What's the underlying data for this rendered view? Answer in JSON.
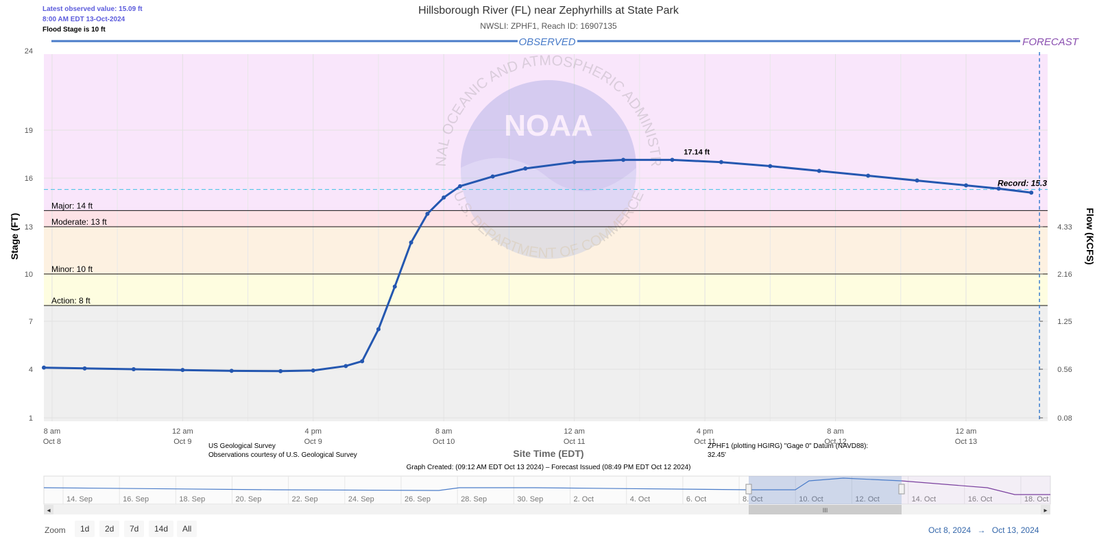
{
  "status": {
    "latest_observed": "Latest observed value: 15.09 ft",
    "observed_time": "8:00 AM EDT 13-Oct-2024",
    "flood_stage": "Flood Stage is 10 ft"
  },
  "header": {
    "title": "Hillsborough River (FL) near Zephyrhills at State Park",
    "subtitle": "NWSLI: ZPHF1, Reach ID: 16907135"
  },
  "colors": {
    "observed": "#4a7cc9",
    "forecast": "#8a4fb0",
    "series": "#2457b0",
    "major_zone": "#f9e6fb",
    "moderate_zone": "#fde2e6",
    "minor_zone": "#fdf1e1",
    "action_zone": "#fefde0",
    "normal_zone": "#efefef",
    "record_line": "#55c6e8"
  },
  "credits": {
    "source_line1": "US Geological Survey",
    "source_line2": "Observations courtesy of U.S. Geological Survey",
    "datum": "ZPHF1 (plotting HGIRG) \"Gage 0\" Datum (NAVD88): 32.45'",
    "graph_created": "Graph Created: (09:12 AM EDT Oct 13 2024) – Forecast Issued (08:49 PM EDT Oct 12 2024)"
  },
  "watermark_text": [
    "NATIONAL OCEANIC AND ATMOSPHERIC ADMINISTRATION",
    "U.S. DEPARTMENT OF COMMERCE",
    "NOAA"
  ],
  "chart_data": {
    "type": "line",
    "title": "Hillsborough River (FL) near Zephyrhills at State Park",
    "subtitle": "NWSLI: ZPHF1, Reach ID: 16907135",
    "xlabel": "Site Time (EDT)",
    "ylabel": "Stage (FT)",
    "y2label": "Flow (KCFS)",
    "ylim": [
      1,
      24
    ],
    "x_range": [
      "2024-10-08 07:00",
      "2024-10-13 10:00"
    ],
    "y_ticks": [
      1,
      4,
      7,
      10,
      13,
      16,
      19,
      24
    ],
    "y2_ticks": [
      {
        "stage": 1,
        "label": "0.08"
      },
      {
        "stage": 4,
        "label": "0.56"
      },
      {
        "stage": 7,
        "label": "1.25"
      },
      {
        "stage": 10,
        "label": "2.16"
      },
      {
        "stage": 13,
        "label": "4.33"
      }
    ],
    "x_ticks": [
      {
        "t": "2024-10-08 08:00",
        "line1": "8 am",
        "line2": "Oct 8"
      },
      {
        "t": "2024-10-09 00:00",
        "line1": "12 am",
        "line2": "Oct 9"
      },
      {
        "t": "2024-10-09 16:00",
        "line1": "4 pm",
        "line2": "Oct 9"
      },
      {
        "t": "2024-10-10 08:00",
        "line1": "8 am",
        "line2": "Oct 10"
      },
      {
        "t": "2024-10-11 00:00",
        "line1": "12 am",
        "line2": "Oct 11"
      },
      {
        "t": "2024-10-11 16:00",
        "line1": "4 pm",
        "line2": "Oct 11"
      },
      {
        "t": "2024-10-12 08:00",
        "line1": "8 am",
        "line2": "Oct 12"
      },
      {
        "t": "2024-10-13 00:00",
        "line1": "12 am",
        "line2": "Oct 13"
      }
    ],
    "observed_label": "OBSERVED",
    "forecast_label": "FORECAST",
    "forecast_start": "2024-10-13 09:00",
    "thresholds": [
      {
        "name": "Major",
        "value": 14,
        "label": "Major: 14 ft"
      },
      {
        "name": "Moderate",
        "value": 13,
        "label": "Moderate: 13 ft"
      },
      {
        "name": "Minor",
        "value": 10,
        "label": "Minor: 10 ft"
      },
      {
        "name": "Action",
        "value": 8,
        "label": "Action: 8 ft"
      }
    ],
    "record": {
      "value": 15.3,
      "label": "Record: 15.3"
    },
    "peak": {
      "t": "2024-10-11 15:00",
      "value": 17.14,
      "label": "17.14 ft"
    },
    "series": [
      {
        "name": "Observed stage",
        "points": [
          [
            "2024-10-08 07:00",
            4.1
          ],
          [
            "2024-10-08 12:00",
            4.05
          ],
          [
            "2024-10-08 18:00",
            4.0
          ],
          [
            "2024-10-09 00:00",
            3.95
          ],
          [
            "2024-10-09 06:00",
            3.9
          ],
          [
            "2024-10-09 12:00",
            3.88
          ],
          [
            "2024-10-09 16:00",
            3.92
          ],
          [
            "2024-10-09 20:00",
            4.2
          ],
          [
            "2024-10-09 22:00",
            4.5
          ],
          [
            "2024-10-10 00:00",
            6.5
          ],
          [
            "2024-10-10 02:00",
            9.2
          ],
          [
            "2024-10-10 04:00",
            12.0
          ],
          [
            "2024-10-10 06:00",
            13.8
          ],
          [
            "2024-10-10 08:00",
            14.8
          ],
          [
            "2024-10-10 10:00",
            15.5
          ],
          [
            "2024-10-10 14:00",
            16.1
          ],
          [
            "2024-10-10 18:00",
            16.6
          ],
          [
            "2024-10-11 00:00",
            17.0
          ],
          [
            "2024-10-11 06:00",
            17.14
          ],
          [
            "2024-10-11 12:00",
            17.14
          ],
          [
            "2024-10-11 18:00",
            17.0
          ],
          [
            "2024-10-12 00:00",
            16.75
          ],
          [
            "2024-10-12 06:00",
            16.45
          ],
          [
            "2024-10-12 12:00",
            16.15
          ],
          [
            "2024-10-12 18:00",
            15.85
          ],
          [
            "2024-10-13 00:00",
            15.55
          ],
          [
            "2024-10-13 04:00",
            15.35
          ],
          [
            "2024-10-13 08:00",
            15.1
          ]
        ]
      }
    ]
  },
  "navigator": {
    "labels": [
      "14. Sep",
      "16. Sep",
      "18. Sep",
      "20. Sep",
      "22. Sep",
      "24. Sep",
      "26. Sep",
      "28. Sep",
      "30. Sep",
      "2. Oct",
      "4. Oct",
      "6. Oct",
      "8. Oct",
      "10. Oct",
      "12. Oct",
      "14. Oct",
      "16. Oct",
      "18. Oct"
    ],
    "scroll_left": "◂",
    "scroll_right": "▸",
    "scroll_grip": "III"
  },
  "zoom": {
    "label": "Zoom",
    "buttons": [
      "1d",
      "2d",
      "7d",
      "14d",
      "All"
    ]
  },
  "range": {
    "from": "Oct 8, 2024",
    "arrow": "→",
    "to": "Oct 13, 2024"
  }
}
